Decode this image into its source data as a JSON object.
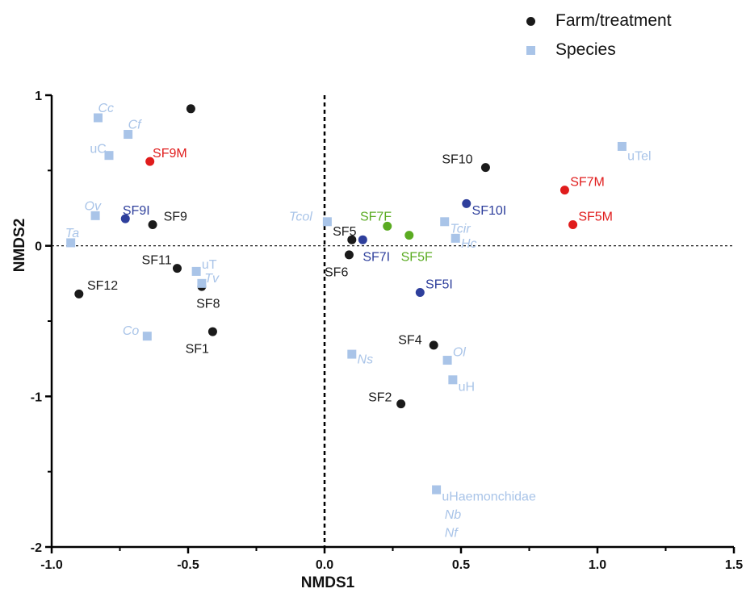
{
  "colors": {
    "farm": "#1a1a1a",
    "species": "#a9c4e8",
    "red": "#e01c1c",
    "blue": "#2e3f9c",
    "green": "#5aab21",
    "axis": "#000000"
  },
  "legend": {
    "farm_label": "Farm/treatment",
    "species_label": "Species"
  },
  "chart_data": {
    "type": "scatter",
    "xlabel": "NMDS1",
    "ylabel": "NMDS2",
    "xlim": [
      -1.0,
      1.5
    ],
    "ylim": [
      -2,
      1
    ],
    "xticks": [
      "-1.0",
      "-0.5",
      "0.0",
      "0.5",
      "1.0",
      "1.5"
    ],
    "yticks": [
      "1",
      "0",
      "-1",
      "-2"
    ],
    "ytick_values": [
      1,
      0,
      -1,
      -2
    ],
    "xtick_values": [
      -1.0,
      -0.5,
      0.0,
      0.5,
      1.0,
      1.5
    ],
    "reference_lines": {
      "x": 0,
      "y": 0
    },
    "series": [
      {
        "name": "Farm/treatment",
        "marker": "circle",
        "points": [
          {
            "label": "",
            "x": -0.49,
            "y": 0.91,
            "color": "farm"
          },
          {
            "label": "SF9",
            "x": -0.63,
            "y": 0.14,
            "color": "farm"
          },
          {
            "label": "SF11",
            "x": -0.54,
            "y": -0.15,
            "color": "farm"
          },
          {
            "label": "SF8",
            "x": -0.45,
            "y": -0.27,
            "color": "farm"
          },
          {
            "label": "SF12",
            "x": -0.9,
            "y": -0.32,
            "color": "farm"
          },
          {
            "label": "SF1",
            "x": -0.41,
            "y": -0.57,
            "color": "farm"
          },
          {
            "label": "SF10",
            "x": 0.59,
            "y": 0.52,
            "color": "farm"
          },
          {
            "label": "SF5",
            "x": 0.1,
            "y": 0.04,
            "color": "farm"
          },
          {
            "label": "SF6",
            "x": 0.09,
            "y": -0.06,
            "color": "farm"
          },
          {
            "label": "SF4",
            "x": 0.4,
            "y": -0.66,
            "color": "farm"
          },
          {
            "label": "SF2",
            "x": 0.28,
            "y": -1.05,
            "color": "farm"
          },
          {
            "label": "SF9M",
            "x": -0.64,
            "y": 0.56,
            "color": "red"
          },
          {
            "label": "SF7M",
            "x": 0.88,
            "y": 0.37,
            "color": "red"
          },
          {
            "label": "SF5M",
            "x": 0.91,
            "y": 0.14,
            "color": "red"
          },
          {
            "label": "SF9I",
            "x": -0.73,
            "y": 0.18,
            "color": "blue"
          },
          {
            "label": "SF10I",
            "x": 0.52,
            "y": 0.28,
            "color": "blue"
          },
          {
            "label": "SF7I",
            "x": 0.14,
            "y": 0.04,
            "color": "blue"
          },
          {
            "label": "SF5I",
            "x": 0.35,
            "y": -0.31,
            "color": "blue"
          },
          {
            "label": "SF7F",
            "x": 0.23,
            "y": 0.13,
            "color": "green"
          },
          {
            "label": "SF5F",
            "x": 0.31,
            "y": 0.07,
            "color": "green"
          }
        ]
      },
      {
        "name": "Species",
        "marker": "square",
        "points": [
          {
            "label": "Cc",
            "x": -0.83,
            "y": 0.85,
            "color": "species"
          },
          {
            "label": "Cf",
            "x": -0.72,
            "y": 0.74,
            "color": "species"
          },
          {
            "label": "uC",
            "x": -0.79,
            "y": 0.6,
            "color": "species"
          },
          {
            "label": "Ov",
            "x": -0.84,
            "y": 0.2,
            "color": "species"
          },
          {
            "label": "Ta",
            "x": -0.93,
            "y": 0.02,
            "color": "species"
          },
          {
            "label": "uT",
            "x": -0.47,
            "y": -0.17,
            "color": "species"
          },
          {
            "label": "Tv",
            "x": -0.45,
            "y": -0.25,
            "color": "species"
          },
          {
            "label": "Co",
            "x": -0.65,
            "y": -0.6,
            "color": "species"
          },
          {
            "label": "Tcol",
            "x": 0.01,
            "y": 0.16,
            "color": "species"
          },
          {
            "label": "Tcir",
            "x": 0.44,
            "y": 0.16,
            "color": "species"
          },
          {
            "label": "Hc",
            "x": 0.48,
            "y": 0.05,
            "color": "species"
          },
          {
            "label": "uTel",
            "x": 1.09,
            "y": 0.66,
            "color": "species"
          },
          {
            "label": "Ns",
            "x": 0.1,
            "y": -0.72,
            "color": "species"
          },
          {
            "label": "Ol",
            "x": 0.45,
            "y": -0.76,
            "color": "species"
          },
          {
            "label": "uH",
            "x": 0.47,
            "y": -0.89,
            "color": "species"
          },
          {
            "label": "uHaemonchidae",
            "x": 0.41,
            "y": -1.62,
            "color": "species"
          }
        ]
      }
    ],
    "point_labels": [
      {
        "text": "SF9",
        "color": "farm",
        "italic": false,
        "x": -0.59,
        "y": 0.2
      },
      {
        "text": "SF11",
        "color": "farm",
        "italic": false,
        "x": -0.67,
        "y": -0.09
      },
      {
        "text": "SF8",
        "color": "farm",
        "italic": false,
        "x": -0.47,
        "y": -0.38
      },
      {
        "text": "SF12",
        "color": "farm",
        "italic": false,
        "x": -0.87,
        "y": -0.26
      },
      {
        "text": "SF1",
        "color": "farm",
        "italic": false,
        "x": -0.51,
        "y": -0.68
      },
      {
        "text": "SF10",
        "color": "farm",
        "italic": false,
        "x": 0.43,
        "y": 0.58
      },
      {
        "text": "SF5",
        "color": "farm",
        "italic": false,
        "x": 0.03,
        "y": 0.1
      },
      {
        "text": "SF6",
        "color": "farm",
        "italic": false,
        "x": 0.0,
        "y": -0.17
      },
      {
        "text": "SF4",
        "color": "farm",
        "italic": false,
        "x": 0.27,
        "y": -0.62
      },
      {
        "text": "SF2",
        "color": "farm",
        "italic": false,
        "x": 0.16,
        "y": -1.0
      },
      {
        "text": "SF9M",
        "color": "red",
        "italic": false,
        "x": -0.63,
        "y": 0.62
      },
      {
        "text": "SF7M",
        "color": "red",
        "italic": false,
        "x": 0.9,
        "y": 0.43
      },
      {
        "text": "SF5M",
        "color": "red",
        "italic": false,
        "x": 0.93,
        "y": 0.2
      },
      {
        "text": "SF9I",
        "color": "blue",
        "italic": false,
        "x": -0.74,
        "y": 0.24
      },
      {
        "text": "SF10I",
        "color": "blue",
        "italic": false,
        "x": 0.54,
        "y": 0.24
      },
      {
        "text": "SF7I",
        "color": "blue",
        "italic": false,
        "x": 0.14,
        "y": -0.07
      },
      {
        "text": "SF5I",
        "color": "blue",
        "italic": false,
        "x": 0.37,
        "y": -0.25
      },
      {
        "text": "SF7F",
        "color": "green",
        "italic": false,
        "x": 0.13,
        "y": 0.2
      },
      {
        "text": "SF5F",
        "color": "green",
        "italic": false,
        "x": 0.28,
        "y": -0.07
      },
      {
        "text": "Cc",
        "color": "species",
        "italic": true,
        "x": -0.83,
        "y": 0.92
      },
      {
        "text": "Cf",
        "color": "species",
        "italic": true,
        "x": -0.72,
        "y": 0.81
      },
      {
        "text": "uC",
        "color": "species",
        "italic": false,
        "x": -0.86,
        "y": 0.65
      },
      {
        "text": "Ov",
        "color": "species",
        "italic": true,
        "x": -0.88,
        "y": 0.27
      },
      {
        "text": "Ta",
        "color": "species",
        "italic": true,
        "x": -0.95,
        "y": 0.09
      },
      {
        "text": "uT",
        "color": "species",
        "italic": false,
        "x": -0.45,
        "y": -0.12
      },
      {
        "text": "Tv",
        "color": "species",
        "italic": true,
        "x": -0.44,
        "y": -0.21
      },
      {
        "text": "Co",
        "color": "species",
        "italic": true,
        "x": -0.74,
        "y": -0.56
      },
      {
        "text": "Tcol",
        "color": "species",
        "italic": true,
        "x": -0.13,
        "y": 0.2
      },
      {
        "text": "Tcir",
        "color": "species",
        "italic": true,
        "x": 0.46,
        "y": 0.12
      },
      {
        "text": "Hc",
        "color": "species",
        "italic": true,
        "x": 0.5,
        "y": 0.02
      },
      {
        "text": "uTel",
        "color": "species",
        "italic": false,
        "x": 1.11,
        "y": 0.6
      },
      {
        "text": "Ns",
        "color": "species",
        "italic": true,
        "x": 0.12,
        "y": -0.75
      },
      {
        "text": "Ol",
        "color": "species",
        "italic": true,
        "x": 0.47,
        "y": -0.7
      },
      {
        "text": "uH",
        "color": "species",
        "italic": false,
        "x": 0.49,
        "y": -0.93
      },
      {
        "text": "uHaemonchidae",
        "color": "species",
        "italic": false,
        "x": 0.43,
        "y": -1.66
      },
      {
        "text": "Nb",
        "color": "species",
        "italic": true,
        "x": 0.44,
        "y": -1.78
      },
      {
        "text": "Nf",
        "color": "species",
        "italic": true,
        "x": 0.44,
        "y": -1.9
      }
    ]
  }
}
